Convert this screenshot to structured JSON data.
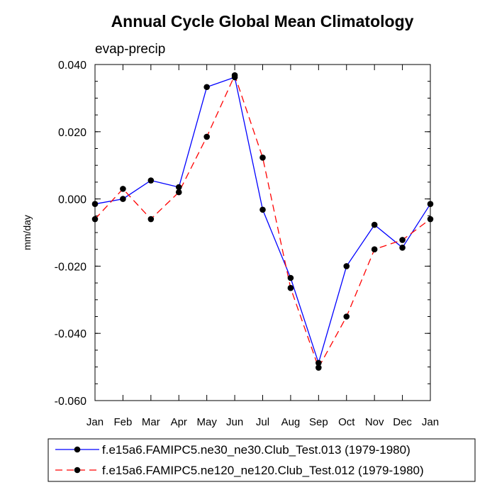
{
  "chart_data": {
    "type": "line",
    "title": "Annual Cycle Global Mean Climatology",
    "subtitle": "evap-precip",
    "xlabel": "",
    "ylabel": "mm/day",
    "categories": [
      "Jan",
      "Feb",
      "Mar",
      "Apr",
      "May",
      "Jun",
      "Jul",
      "Aug",
      "Sep",
      "Oct",
      "Nov",
      "Dec",
      "Jan"
    ],
    "ylim": [
      -0.06,
      0.04
    ],
    "yticks": [
      -0.06,
      -0.04,
      -0.02,
      0.0,
      0.02,
      0.04
    ],
    "ytick_labels": [
      "-0.060",
      "-0.040",
      "-0.020",
      "0.000",
      "0.020",
      "0.040"
    ],
    "grid": false,
    "legend_position": "bottom",
    "series": [
      {
        "name": "f.e15a6.FAMIPC5.ne30_ne30.Club_Test.013 (1979-1980)",
        "color": "#0000ff",
        "dash": "solid",
        "marker": "filled-circle",
        "values": [
          -0.0015,
          0.0,
          0.0055,
          0.0035,
          0.0333,
          0.0362,
          -0.0032,
          -0.0235,
          -0.0488,
          -0.02,
          -0.0077,
          -0.0145,
          -0.0015
        ]
      },
      {
        "name": "f.e15a6.FAMIPC5.ne120_ne120.Club_Test.012 (1979-1980)",
        "color": "#ff0000",
        "dash": "dashed",
        "marker": "filled-circle",
        "values": [
          -0.006,
          0.003,
          -0.006,
          0.002,
          0.0185,
          0.0368,
          0.0123,
          -0.0265,
          -0.0502,
          -0.035,
          -0.015,
          -0.0122,
          -0.006
        ]
      }
    ]
  }
}
